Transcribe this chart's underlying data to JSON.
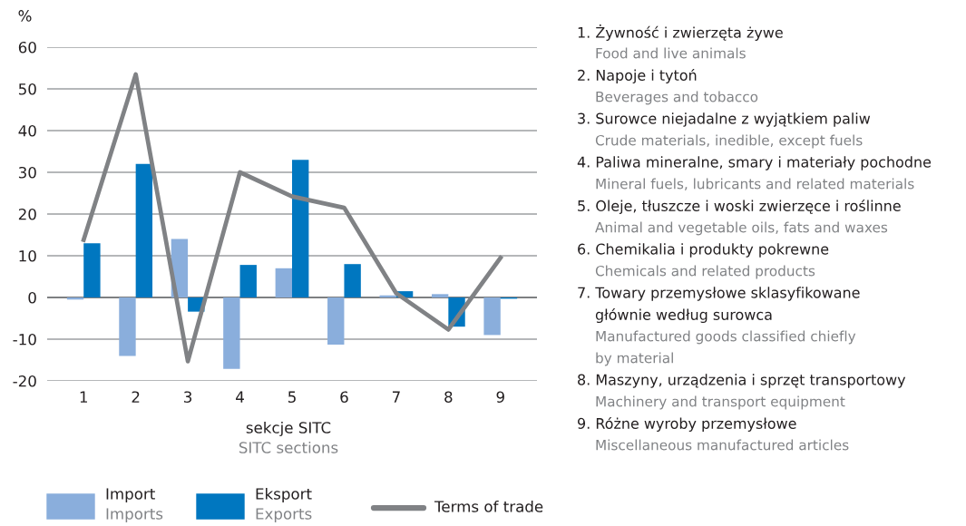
{
  "chart_data": {
    "type": "bar",
    "ylabel": "%",
    "xlabel": "sekcje SITC\nSITC sections",
    "categories": [
      "1",
      "2",
      "3",
      "4",
      "5",
      "6",
      "7",
      "8",
      "9"
    ],
    "series": [
      {
        "name": "Import\nImports",
        "color": "#8aaedc",
        "values": [
          -0.5,
          -14,
          14,
          -17.1,
          7,
          -11.3,
          0.5,
          0.8,
          -9
        ]
      },
      {
        "name": "Eksport\nExports",
        "color": "#0077c0",
        "values": [
          13,
          32,
          -3.4,
          7.8,
          33,
          8,
          1.5,
          -7,
          -0.3
        ]
      },
      {
        "name": "Terms of trade",
        "type": "line",
        "color": "#808285",
        "values": [
          13.8,
          53.5,
          -15.3,
          30,
          24.2,
          21.5,
          1,
          -7.7,
          9.5
        ]
      }
    ],
    "ylim": [
      -20,
      60
    ],
    "yticks": [
      -20,
      -10,
      0,
      10,
      20,
      30,
      40,
      50,
      60
    ],
    "grid": "y",
    "legend": "bottom",
    "marker": "none",
    "line_style": "solid",
    "annotations": [
      "1. Żywność i zwierzęta żywe",
      "Food and live animals",
      "2. Napoje i tytoń",
      "Beverages and tobacco",
      "3. Surowce niejadalne z wyjątkiem paliw",
      "Crude materials, inedible, except fuels",
      "4. Paliwa mineralne, smary i materiały pochodne",
      "Mineral fuels, lubricants and related materials",
      "5. Oleje, tłuszcze i woski zwierzęce i roślinne",
      "Animal and vegetable oils, fats and waxes",
      "6. Chemikalia i produkty pokrewne",
      "Chemicals and related products",
      "7. Towary przemysłowe sklasyfikowane\ngłównie według surowca",
      "Manufactured goods classified chiefly\nby material",
      "8. Maszyny, urządzenia i sprzęt transportowy",
      "Machinery and transport equipment",
      "9. Różne wyroby przemysłowe",
      "Miscellaneous manufactured articles"
    ]
  }
}
